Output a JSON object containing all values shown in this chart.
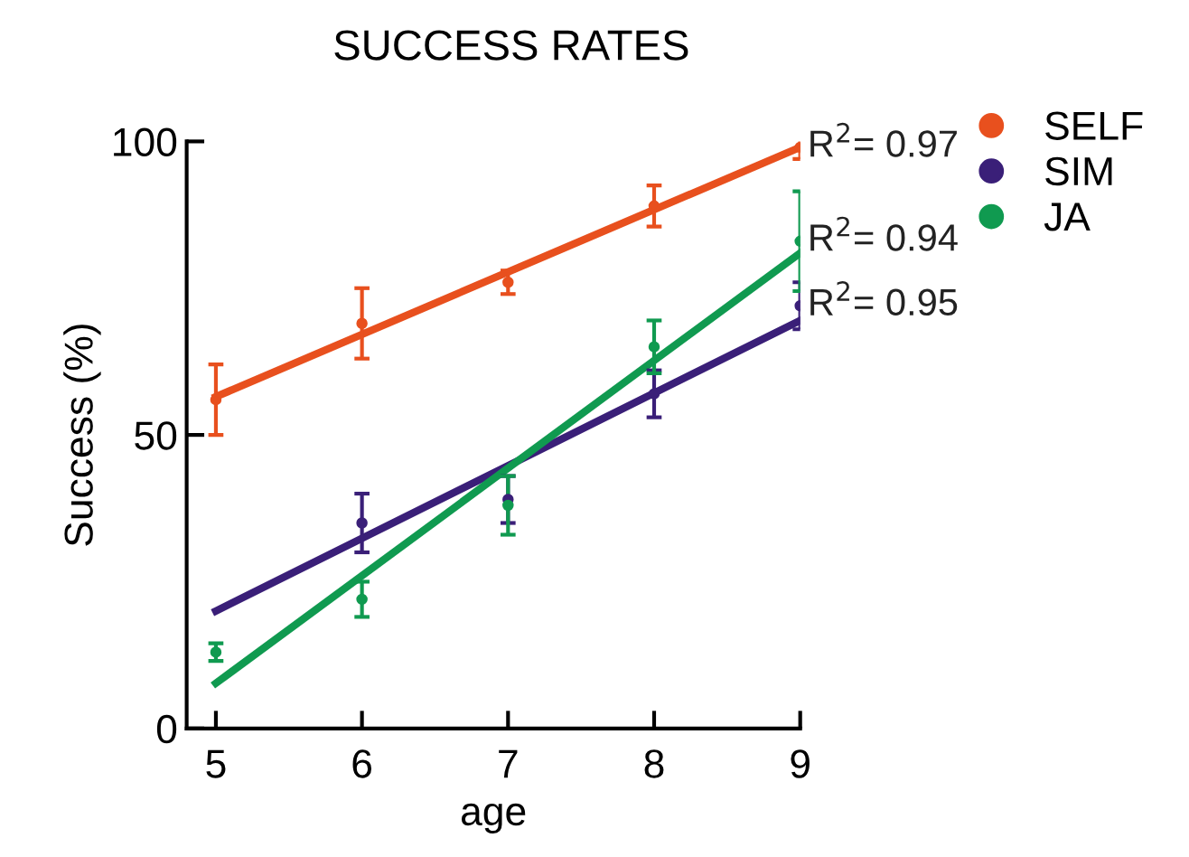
{
  "chart_data": {
    "type": "scatter",
    "title": "SUCCESS RATES",
    "xlabel": "age",
    "ylabel": "Success (%)",
    "xlim": [
      4.8,
      9
    ],
    "xticks": [
      5,
      6,
      7,
      8,
      9
    ],
    "ylim": [
      0,
      100
    ],
    "yticks": [
      0,
      50,
      100
    ],
    "grid": false,
    "legend": "top right",
    "series": [
      {
        "name": "SELF",
        "marker": "circle",
        "color": "#e8501e",
        "x": [
          5,
          6,
          7,
          8,
          9
        ],
        "values": [
          56,
          69,
          76,
          89,
          99
        ],
        "errors": [
          6,
          6,
          2,
          3.5,
          2
        ]
      },
      {
        "name": "SIM",
        "marker": "circle",
        "color": "#3a1f78",
        "x": [
          6,
          7,
          8,
          9
        ],
        "values": [
          35,
          39,
          57,
          72
        ],
        "errors": [
          5,
          4,
          4,
          4
        ]
      },
      {
        "name": "JA",
        "marker": "circle",
        "color": "#109a50",
        "x": [
          5,
          6,
          7,
          8,
          9
        ],
        "values": [
          13,
          22,
          38,
          65,
          83
        ],
        "errors": [
          1.5,
          3,
          5,
          4.5,
          8.5
        ]
      },
      {
        "type": "line",
        "marker": "none",
        "color": "#e8501e",
        "x": [
          5,
          9
        ],
        "values": [
          56.5,
          99
        ]
      },
      {
        "type": "line",
        "marker": "none",
        "color": "#3a1f78",
        "x": [
          5,
          9
        ],
        "values": [
          20,
          69.5
        ]
      },
      {
        "type": "line",
        "marker": "none",
        "color": "#109a50",
        "x": [
          5,
          9
        ],
        "values": [
          7.7,
          81
        ]
      }
    ],
    "annotations": [
      "R$^{2}$= 0.97",
      "R$^{2}$= 0.94",
      "R$^{2}$= 0.95"
    ]
  }
}
